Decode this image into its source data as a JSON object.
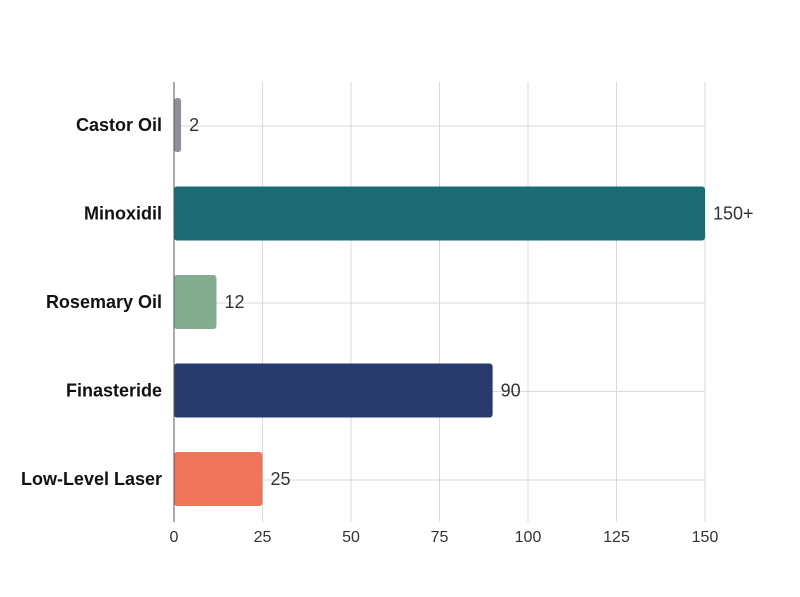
{
  "chart_data": {
    "type": "bar",
    "orientation": "horizontal",
    "title": "",
    "xlabel": "",
    "ylabel": "",
    "xlim": [
      0,
      150
    ],
    "x_ticks": [
      0,
      25,
      50,
      75,
      100,
      125,
      150
    ],
    "grid": true,
    "legend": "none",
    "categories": [
      "Castor Oil",
      "Minoxidil",
      "Rosemary Oil",
      "Finasteride",
      "Low-Level Laser"
    ],
    "values": [
      2,
      150,
      12,
      90,
      25
    ],
    "value_labels": [
      "2",
      "150+",
      "12",
      "90",
      "25"
    ],
    "colors": [
      "#8e8e9c",
      "#1c6a72",
      "#84ad90",
      "#273a6b",
      "#ef745c"
    ]
  }
}
